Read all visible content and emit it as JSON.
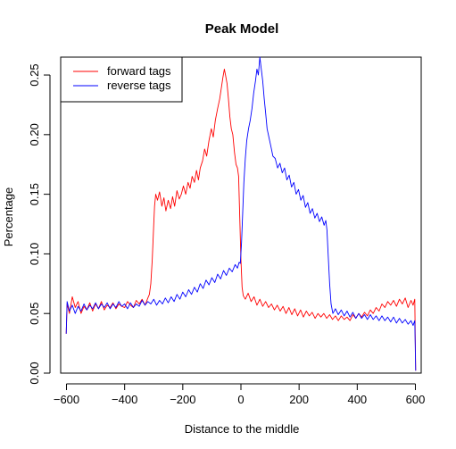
{
  "chart_data": {
    "type": "line",
    "title": "Peak Model",
    "xlabel": "Distance to the middle",
    "ylabel": "Percentage",
    "xlim": [
      -620,
      620
    ],
    "ylim": [
      0,
      0.265
    ],
    "x_ticks": [
      -600,
      -400,
      -200,
      0,
      200,
      400,
      600
    ],
    "x_tick_labels": [
      "−600",
      "−400",
      "−200",
      "0",
      "200",
      "400",
      "600"
    ],
    "y_ticks": [
      0.0,
      0.05,
      0.1,
      0.15,
      0.2,
      0.25
    ],
    "y_tick_labels": [
      "0.00",
      "0.05",
      "0.10",
      "0.15",
      "0.20",
      "0.25"
    ],
    "grid": false,
    "legend_position": "top-left",
    "series": [
      {
        "name": "forward tags",
        "color": "#ff0000",
        "points": [
          [
            -601,
            0.033
          ],
          [
            -598,
            0.058
          ],
          [
            -590,
            0.05
          ],
          [
            -580,
            0.064
          ],
          [
            -570,
            0.055
          ],
          [
            -560,
            0.06
          ],
          [
            -550,
            0.05
          ],
          [
            -540,
            0.056
          ],
          [
            -530,
            0.053
          ],
          [
            -520,
            0.059
          ],
          [
            -510,
            0.052
          ],
          [
            -500,
            0.058
          ],
          [
            -490,
            0.054
          ],
          [
            -480,
            0.06
          ],
          [
            -470,
            0.053
          ],
          [
            -460,
            0.057
          ],
          [
            -450,
            0.055
          ],
          [
            -440,
            0.059
          ],
          [
            -430,
            0.054
          ],
          [
            -420,
            0.058
          ],
          [
            -410,
            0.056
          ],
          [
            -400,
            0.055
          ],
          [
            -390,
            0.06
          ],
          [
            -380,
            0.057
          ],
          [
            -370,
            0.055
          ],
          [
            -360,
            0.061
          ],
          [
            -350,
            0.058
          ],
          [
            -340,
            0.062
          ],
          [
            -330,
            0.057
          ],
          [
            -320,
            0.063
          ],
          [
            -315,
            0.066
          ],
          [
            -310,
            0.075
          ],
          [
            -305,
            0.095
          ],
          [
            -300,
            0.125
          ],
          [
            -297,
            0.14
          ],
          [
            -293,
            0.15
          ],
          [
            -287,
            0.145
          ],
          [
            -280,
            0.152
          ],
          [
            -272,
            0.14
          ],
          [
            -265,
            0.147
          ],
          [
            -258,
            0.136
          ],
          [
            -250,
            0.145
          ],
          [
            -242,
            0.138
          ],
          [
            -235,
            0.148
          ],
          [
            -228,
            0.14
          ],
          [
            -220,
            0.153
          ],
          [
            -212,
            0.146
          ],
          [
            -205,
            0.15
          ],
          [
            -198,
            0.157
          ],
          [
            -190,
            0.15
          ],
          [
            -182,
            0.16
          ],
          [
            -175,
            0.155
          ],
          [
            -168,
            0.165
          ],
          [
            -160,
            0.16
          ],
          [
            -153,
            0.17
          ],
          [
            -146,
            0.162
          ],
          [
            -140,
            0.172
          ],
          [
            -132,
            0.178
          ],
          [
            -125,
            0.188
          ],
          [
            -118,
            0.182
          ],
          [
            -110,
            0.195
          ],
          [
            -102,
            0.205
          ],
          [
            -95,
            0.198
          ],
          [
            -88,
            0.212
          ],
          [
            -80,
            0.222
          ],
          [
            -73,
            0.23
          ],
          [
            -67,
            0.24
          ],
          [
            -62,
            0.248
          ],
          [
            -57,
            0.255
          ],
          [
            -53,
            0.25
          ],
          [
            -48,
            0.243
          ],
          [
            -43,
            0.23
          ],
          [
            -38,
            0.215
          ],
          [
            -33,
            0.205
          ],
          [
            -28,
            0.2
          ],
          [
            -22,
            0.185
          ],
          [
            -17,
            0.175
          ],
          [
            -12,
            0.172
          ],
          [
            -8,
            0.165
          ],
          [
            -4,
            0.13
          ],
          [
            0,
            0.095
          ],
          [
            4,
            0.072
          ],
          [
            8,
            0.065
          ],
          [
            15,
            0.062
          ],
          [
            25,
            0.067
          ],
          [
            35,
            0.06
          ],
          [
            45,
            0.064
          ],
          [
            55,
            0.057
          ],
          [
            65,
            0.062
          ],
          [
            75,
            0.056
          ],
          [
            85,
            0.06
          ],
          [
            95,
            0.055
          ],
          [
            105,
            0.058
          ],
          [
            115,
            0.053
          ],
          [
            125,
            0.057
          ],
          [
            135,
            0.052
          ],
          [
            145,
            0.056
          ],
          [
            155,
            0.05
          ],
          [
            165,
            0.055
          ],
          [
            175,
            0.049
          ],
          [
            185,
            0.054
          ],
          [
            195,
            0.048
          ],
          [
            205,
            0.053
          ],
          [
            215,
            0.047
          ],
          [
            225,
            0.052
          ],
          [
            235,
            0.048
          ],
          [
            245,
            0.051
          ],
          [
            255,
            0.046
          ],
          [
            265,
            0.05
          ],
          [
            275,
            0.047
          ],
          [
            285,
            0.05
          ],
          [
            295,
            0.046
          ],
          [
            305,
            0.049
          ],
          [
            315,
            0.045
          ],
          [
            325,
            0.048
          ],
          [
            335,
            0.044
          ],
          [
            345,
            0.048
          ],
          [
            355,
            0.045
          ],
          [
            365,
            0.047
          ],
          [
            375,
            0.044
          ],
          [
            385,
            0.049
          ],
          [
            395,
            0.046
          ],
          [
            405,
            0.05
          ],
          [
            415,
            0.047
          ],
          [
            425,
            0.051
          ],
          [
            435,
            0.048
          ],
          [
            445,
            0.053
          ],
          [
            455,
            0.05
          ],
          [
            465,
            0.055
          ],
          [
            475,
            0.052
          ],
          [
            485,
            0.058
          ],
          [
            495,
            0.055
          ],
          [
            505,
            0.06
          ],
          [
            515,
            0.057
          ],
          [
            525,
            0.061
          ],
          [
            535,
            0.056
          ],
          [
            545,
            0.062
          ],
          [
            555,
            0.058
          ],
          [
            565,
            0.063
          ],
          [
            575,
            0.055
          ],
          [
            585,
            0.061
          ],
          [
            592,
            0.057
          ],
          [
            598,
            0.062
          ],
          [
            601,
            0.002
          ]
        ]
      },
      {
        "name": "reverse tags",
        "color": "#0000ff",
        "points": [
          [
            -601,
            0.033
          ],
          [
            -598,
            0.06
          ],
          [
            -590,
            0.052
          ],
          [
            -580,
            0.057
          ],
          [
            -570,
            0.05
          ],
          [
            -560,
            0.056
          ],
          [
            -550,
            0.052
          ],
          [
            -540,
            0.058
          ],
          [
            -530,
            0.053
          ],
          [
            -520,
            0.057
          ],
          [
            -510,
            0.054
          ],
          [
            -500,
            0.059
          ],
          [
            -490,
            0.054
          ],
          [
            -480,
            0.058
          ],
          [
            -470,
            0.055
          ],
          [
            -460,
            0.059
          ],
          [
            -450,
            0.054
          ],
          [
            -440,
            0.058
          ],
          [
            -430,
            0.055
          ],
          [
            -420,
            0.06
          ],
          [
            -410,
            0.056
          ],
          [
            -400,
            0.058
          ],
          [
            -390,
            0.054
          ],
          [
            -380,
            0.059
          ],
          [
            -370,
            0.055
          ],
          [
            -360,
            0.058
          ],
          [
            -350,
            0.056
          ],
          [
            -340,
            0.061
          ],
          [
            -330,
            0.057
          ],
          [
            -320,
            0.06
          ],
          [
            -310,
            0.058
          ],
          [
            -300,
            0.062
          ],
          [
            -290,
            0.057
          ],
          [
            -280,
            0.061
          ],
          [
            -270,
            0.058
          ],
          [
            -260,
            0.063
          ],
          [
            -250,
            0.059
          ],
          [
            -240,
            0.064
          ],
          [
            -230,
            0.06
          ],
          [
            -220,
            0.066
          ],
          [
            -210,
            0.062
          ],
          [
            -200,
            0.068
          ],
          [
            -190,
            0.064
          ],
          [
            -180,
            0.07
          ],
          [
            -170,
            0.066
          ],
          [
            -160,
            0.072
          ],
          [
            -150,
            0.068
          ],
          [
            -140,
            0.075
          ],
          [
            -130,
            0.071
          ],
          [
            -120,
            0.078
          ],
          [
            -110,
            0.074
          ],
          [
            -100,
            0.08
          ],
          [
            -90,
            0.076
          ],
          [
            -80,
            0.083
          ],
          [
            -70,
            0.079
          ],
          [
            -60,
            0.086
          ],
          [
            -50,
            0.082
          ],
          [
            -40,
            0.088
          ],
          [
            -30,
            0.085
          ],
          [
            -20,
            0.091
          ],
          [
            -12,
            0.088
          ],
          [
            -6,
            0.093
          ],
          [
            -2,
            0.092
          ],
          [
            2,
            0.11
          ],
          [
            6,
            0.135
          ],
          [
            10,
            0.16
          ],
          [
            15,
            0.18
          ],
          [
            20,
            0.195
          ],
          [
            26,
            0.205
          ],
          [
            32,
            0.212
          ],
          [
            38,
            0.222
          ],
          [
            44,
            0.235
          ],
          [
            50,
            0.245
          ],
          [
            55,
            0.255
          ],
          [
            60,
            0.25
          ],
          [
            65,
            0.265
          ],
          [
            70,
            0.255
          ],
          [
            75,
            0.245
          ],
          [
            80,
            0.23
          ],
          [
            85,
            0.218
          ],
          [
            90,
            0.205
          ],
          [
            96,
            0.198
          ],
          [
            103,
            0.19
          ],
          [
            110,
            0.182
          ],
          [
            118,
            0.18
          ],
          [
            126,
            0.172
          ],
          [
            134,
            0.176
          ],
          [
            142,
            0.168
          ],
          [
            150,
            0.172
          ],
          [
            158,
            0.162
          ],
          [
            166,
            0.166
          ],
          [
            174,
            0.156
          ],
          [
            182,
            0.16
          ],
          [
            190,
            0.15
          ],
          [
            198,
            0.154
          ],
          [
            206,
            0.145
          ],
          [
            214,
            0.149
          ],
          [
            222,
            0.139
          ],
          [
            230,
            0.143
          ],
          [
            238,
            0.134
          ],
          [
            246,
            0.138
          ],
          [
            254,
            0.13
          ],
          [
            262,
            0.134
          ],
          [
            270,
            0.127
          ],
          [
            278,
            0.131
          ],
          [
            286,
            0.124
          ],
          [
            292,
            0.128
          ],
          [
            296,
            0.12
          ],
          [
            300,
            0.1
          ],
          [
            305,
            0.075
          ],
          [
            310,
            0.058
          ],
          [
            316,
            0.05
          ],
          [
            325,
            0.054
          ],
          [
            335,
            0.049
          ],
          [
            345,
            0.053
          ],
          [
            355,
            0.048
          ],
          [
            365,
            0.052
          ],
          [
            375,
            0.047
          ],
          [
            385,
            0.051
          ],
          [
            395,
            0.046
          ],
          [
            405,
            0.05
          ],
          [
            415,
            0.046
          ],
          [
            425,
            0.049
          ],
          [
            435,
            0.045
          ],
          [
            445,
            0.049
          ],
          [
            455,
            0.045
          ],
          [
            465,
            0.048
          ],
          [
            475,
            0.044
          ],
          [
            485,
            0.048
          ],
          [
            495,
            0.044
          ],
          [
            505,
            0.047
          ],
          [
            515,
            0.043
          ],
          [
            525,
            0.047
          ],
          [
            535,
            0.042
          ],
          [
            545,
            0.046
          ],
          [
            555,
            0.042
          ],
          [
            565,
            0.045
          ],
          [
            575,
            0.041
          ],
          [
            585,
            0.044
          ],
          [
            592,
            0.04
          ],
          [
            598,
            0.044
          ],
          [
            601,
            0.002
          ]
        ]
      }
    ]
  }
}
